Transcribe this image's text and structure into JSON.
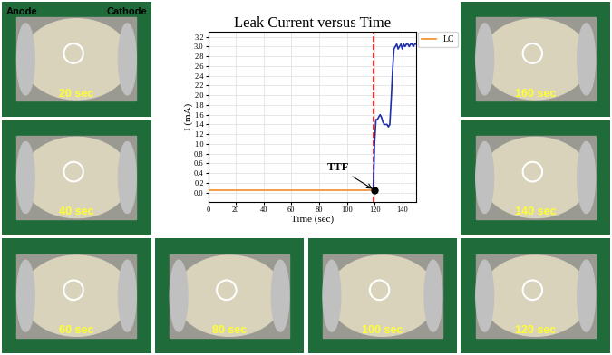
{
  "chart_data": {
    "type": "line",
    "title": "Leak Current versus Time",
    "x_label": "Time (sec)",
    "y_label": "I (mA)",
    "xlim": [
      0,
      150
    ],
    "xticks": [
      0,
      20,
      40,
      60,
      80,
      100,
      120,
      140
    ],
    "ylim": [
      -0.2,
      3.3
    ],
    "yticks": [
      0.0,
      0.2,
      0.4,
      0.6,
      0.8,
      1.0,
      1.2,
      1.4,
      1.6,
      1.8,
      2.0,
      2.2,
      2.4,
      2.6,
      2.8,
      3.0,
      3.2
    ],
    "grid": true,
    "legend": "upper left",
    "series": [
      {
        "name": "LC",
        "color": "#f28c28",
        "x": [
          0,
          119
        ],
        "values": [
          0.05,
          0.05
        ]
      },
      {
        "color": "#1f2fa8",
        "x": [
          119,
          120,
          121,
          122,
          123,
          124,
          125,
          126,
          127,
          128,
          129,
          130,
          131,
          132,
          133,
          134,
          135,
          136,
          137,
          138,
          139,
          140,
          141,
          142,
          143,
          144,
          145,
          146,
          147,
          148,
          149,
          150
        ],
        "values": [
          0.05,
          1.0,
          1.5,
          1.5,
          1.55,
          1.6,
          1.55,
          1.45,
          1.4,
          1.4,
          1.4,
          1.35,
          1.4,
          1.9,
          2.5,
          2.95,
          3.0,
          3.05,
          2.95,
          3.0,
          3.05,
          2.95,
          3.05,
          3.0,
          3.05,
          3.05,
          3.0,
          3.05,
          3.05,
          3.0,
          3.05,
          3.05
        ]
      }
    ],
    "annotations": [
      {
        "text": "TTF",
        "x": 120,
        "y": 0.05
      }
    ],
    "vline": {
      "x": 119,
      "color": "#ff0000",
      "line_style": "dashed"
    }
  },
  "images": [
    {
      "label": "20 sec"
    },
    {
      "label": "40 sec"
    },
    {
      "label": "60 sec"
    },
    {
      "label": "80 sec"
    },
    {
      "label": "100 sec"
    },
    {
      "label": "120 sec"
    },
    {
      "label": "140 sec"
    },
    {
      "label": "160 sec"
    }
  ],
  "electrodes": {
    "anode": "Anode",
    "cathode": "Cathode"
  }
}
